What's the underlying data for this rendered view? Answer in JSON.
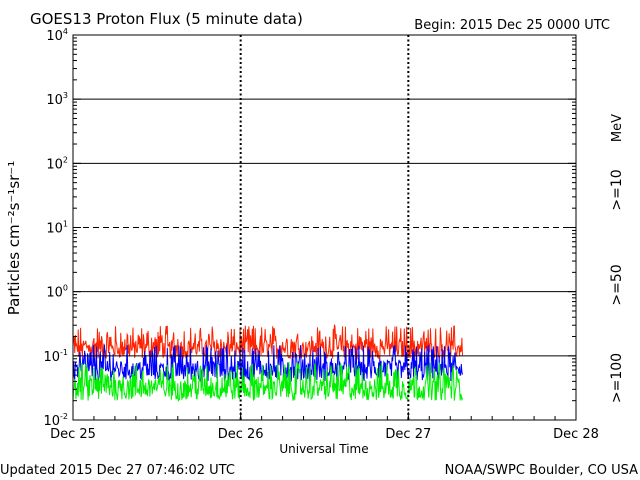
{
  "header": {
    "title": "GOES13 Proton Flux (5 minute data)",
    "begin": "Begin: 2015 Dec 25 0000 UTC"
  },
  "footer": {
    "updated": "Updated 2015 Dec 27 07:46:02 UTC",
    "credit": "NOAA/SWPC Boulder, CO USA"
  },
  "chart_data": {
    "type": "line",
    "title": "GOES13 Proton Flux (5 minute data)",
    "xlabel": "Universal Time",
    "ylabel": "Particles cm⁻²s⁻¹sr⁻¹",
    "yscale": "log",
    "ylim": [
      0.01,
      10000
    ],
    "xlim": [
      "2015-12-25T00:00Z",
      "2015-12-28T00:00Z"
    ],
    "x_ticks": [
      "Dec 25",
      "Dec 26",
      "Dec 27",
      "Dec 28"
    ],
    "y_ticks": [
      {
        "base": "10",
        "exp": "-2"
      },
      {
        "base": "10",
        "exp": "-1"
      },
      {
        "base": "10",
        "exp": "0"
      },
      {
        "base": "10",
        "exp": "1"
      },
      {
        "base": "10",
        "exp": "2"
      },
      {
        "base": "10",
        "exp": "3"
      },
      {
        "base": "10",
        "exp": "4"
      }
    ],
    "threshold_lines": [
      0.1,
      1,
      10,
      100,
      1000
    ],
    "dashed_threshold": 10,
    "data_end": "2015-12-27T07:45Z",
    "unit_label": "MeV",
    "series": [
      {
        "name": ">=10",
        "color": "#ff2200",
        "typical_min": 0.09,
        "typical_max": 0.3
      },
      {
        "name": ">=50",
        "color": "#0000ff",
        "typical_min": 0.04,
        "typical_max": 0.15
      },
      {
        "name": ">=100",
        "color": "#00ee00",
        "typical_min": 0.02,
        "typical_max": 0.08
      }
    ]
  }
}
